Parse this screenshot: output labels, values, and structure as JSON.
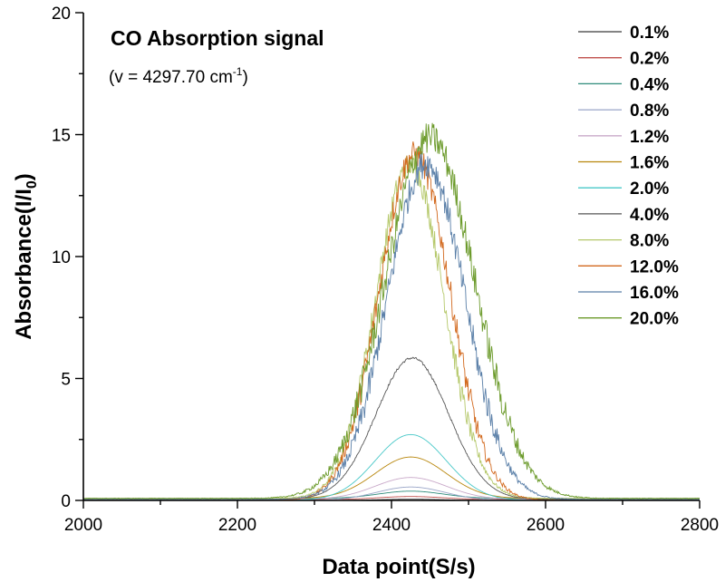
{
  "chart_data": {
    "type": "line",
    "title": "CO Absorption signal",
    "subtitle_prefix": "(",
    "subtitle_main": "v = 4297.70 cm",
    "subtitle_sup": "-1",
    "subtitle_suffix": ")",
    "xlabel": "Data point(S/s)",
    "ylabel_main": "Absorbance(I/I",
    "ylabel_sub": "0",
    "ylabel_suffix": ")",
    "xlim": [
      2000,
      2800
    ],
    "ylim": [
      0,
      20
    ],
    "x_ticks": [
      "2000",
      "2200",
      "2400",
      "2600",
      "2800"
    ],
    "y_ticks": [
      "0",
      "5",
      "10",
      "15",
      "20"
    ],
    "legend_position": "top-right",
    "series": [
      {
        "name": "0.1%",
        "color": "#3b3b3b",
        "peak": 0.05,
        "center": 2425,
        "sigma": 40,
        "noise": 0
      },
      {
        "name": "0.2%",
        "color": "#c0504d",
        "peak": 0.12,
        "center": 2425,
        "sigma": 40,
        "noise": 0
      },
      {
        "name": "0.4%",
        "color": "#2e8b7a",
        "peak": 0.3,
        "center": 2425,
        "sigma": 42,
        "noise": 0
      },
      {
        "name": "0.8%",
        "color": "#9aa6c8",
        "peak": 0.55,
        "center": 2425,
        "sigma": 44,
        "noise": 0
      },
      {
        "name": "1.2%",
        "color": "#c9a9c9",
        "peak": 0.9,
        "center": 2425,
        "sigma": 46,
        "noise": 0
      },
      {
        "name": "1.6%",
        "color": "#b8860b",
        "peak": 1.7,
        "center": 2425,
        "sigma": 46,
        "noise": 0
      },
      {
        "name": "2.0%",
        "color": "#48c8c8",
        "peak": 2.7,
        "center": 2425,
        "sigma": 46,
        "noise": 0
      },
      {
        "name": "4.0%",
        "color": "#555555",
        "peak": 5.8,
        "center": 2427,
        "sigma": 47,
        "noise": 0.05
      },
      {
        "name": "8.0%",
        "color": "#b5c86a",
        "peak": 13.7,
        "center": 2424,
        "sigma": 44,
        "noise": 0.5
      },
      {
        "name": "12.0%",
        "color": "#d2691e",
        "peak": 14.2,
        "center": 2430,
        "sigma": 46,
        "noise": 0.55
      },
      {
        "name": "16.0%",
        "color": "#5a7fa8",
        "peak": 13.8,
        "center": 2445,
        "sigma": 50,
        "noise": 0.6
      },
      {
        "name": "20.0%",
        "color": "#6b9a2a",
        "peak": 14.8,
        "center": 2450,
        "sigma": 58,
        "noise": 0.65
      }
    ]
  }
}
